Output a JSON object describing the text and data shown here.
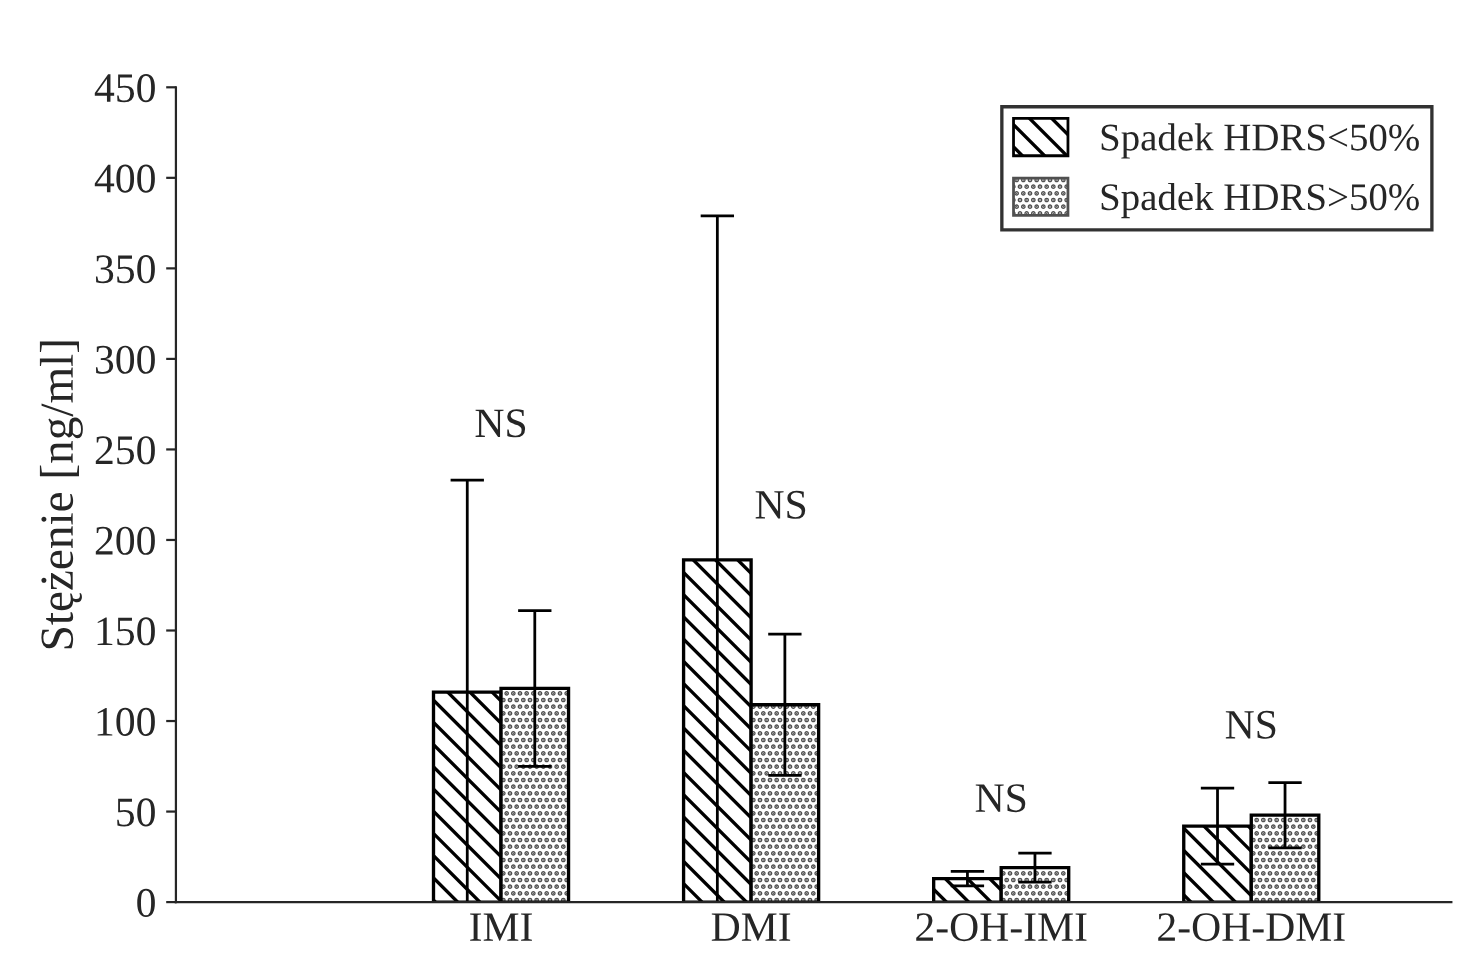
{
  "chart_data": {
    "type": "bar",
    "ylabel": "Stężenie [ng/ml]",
    "categories": [
      null,
      "IMI",
      "DMI",
      "2-OH-IMI",
      "2-OH-DMI"
    ],
    "series": [
      {
        "name": "Spadek HDRS<50%",
        "color": "#000000",
        "values": [
          null,
          116,
          189,
          13,
          42
        ],
        "errors": [
          null,
          117,
          190,
          4,
          21
        ]
      },
      {
        "name": "Spadek HDRS>50%",
        "color": "#505050",
        "values": [
          null,
          118,
          109,
          19,
          48
        ],
        "errors": [
          null,
          43,
          39,
          8,
          18
        ]
      }
    ],
    "ylim": [
      0,
      450
    ],
    "yticks": [
      0,
      50,
      100,
      150,
      200,
      250,
      300,
      350,
      400,
      450
    ],
    "annotations": [
      "NS",
      "NS",
      "NS",
      "NS"
    ],
    "grid": false,
    "legend": "top right"
  }
}
